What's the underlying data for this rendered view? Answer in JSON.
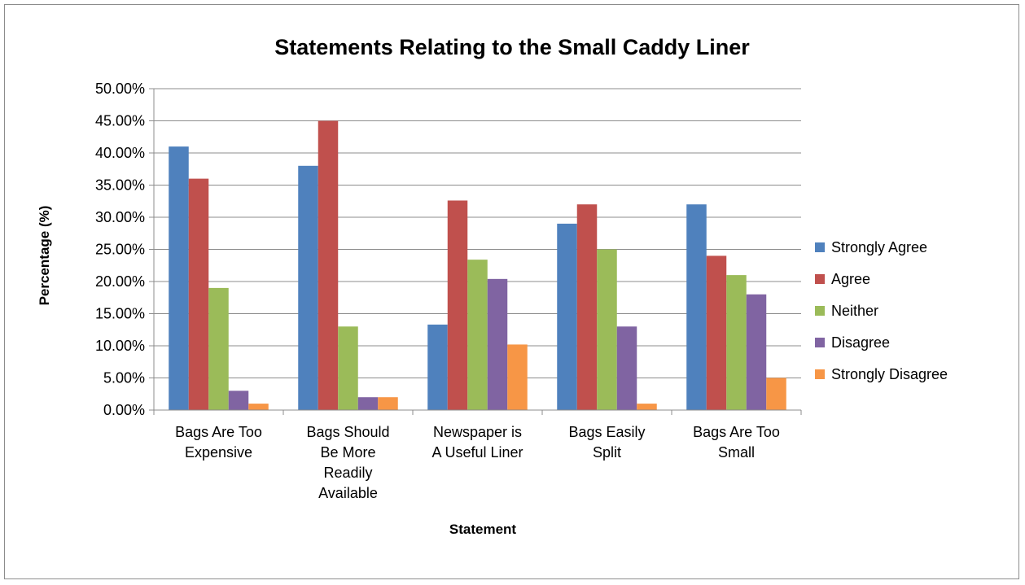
{
  "chart_data": {
    "type": "bar",
    "title": "Statements Relating to the Small Caddy Liner",
    "xlabel": "Statement",
    "ylabel": "Percentage (%)",
    "ylim": [
      0,
      50
    ],
    "yticks": [
      "0.00%",
      "5.00%",
      "10.00%",
      "15.00%",
      "20.00%",
      "25.00%",
      "30.00%",
      "35.00%",
      "40.00%",
      "45.00%",
      "50.00%"
    ],
    "categories": [
      [
        "Bags Are Too",
        "Expensive"
      ],
      [
        "Bags Should",
        "Be More",
        "Readily",
        "Available"
      ],
      [
        "Newspaper is",
        "A Useful Liner"
      ],
      [
        "Bags Easily",
        "Split"
      ],
      [
        "Bags Are Too",
        "Small"
      ]
    ],
    "series": [
      {
        "name": "Strongly Agree",
        "color": "#4F81BD",
        "values": [
          41,
          38,
          13.3,
          29,
          32
        ]
      },
      {
        "name": "Agree",
        "color": "#C0504D",
        "values": [
          36,
          45,
          32.6,
          32,
          24
        ]
      },
      {
        "name": "Neither",
        "color": "#9BBB59",
        "values": [
          19,
          13,
          23.4,
          25,
          21
        ]
      },
      {
        "name": "Disagree",
        "color": "#8064A2",
        "values": [
          3,
          2,
          20.4,
          13,
          18
        ]
      },
      {
        "name": "Strongly Disagree",
        "color": "#F79646",
        "values": [
          1,
          2,
          10.2,
          1,
          5
        ]
      }
    ],
    "grid": true,
    "legend_position": "right"
  }
}
